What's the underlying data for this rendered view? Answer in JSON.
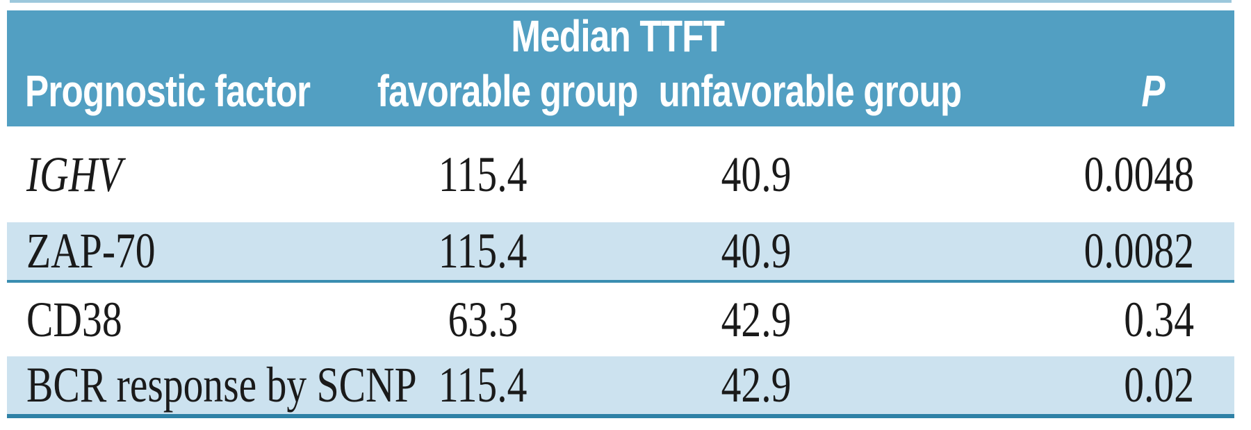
{
  "table": {
    "spanner": "Median TTFT",
    "columns": {
      "factor": "Prognostic factor",
      "favorable": "favorable group",
      "unfavorable": "unfavorable group",
      "p": "P"
    },
    "rows": [
      {
        "factor": "IGHV",
        "favorable": "115.4",
        "unfavorable": "40.9",
        "p": "0.0048"
      },
      {
        "factor": "ZAP-70",
        "favorable": "115.4",
        "unfavorable": "40.9",
        "p": "0.0082"
      },
      {
        "factor": "CD38",
        "favorable": "63.3",
        "unfavorable": "42.9",
        "p": "0.34"
      },
      {
        "factor": "BCR response by SCNP",
        "favorable": "115.4",
        "unfavorable": "42.9",
        "p": "0.02"
      }
    ],
    "colors": {
      "header_bg": "#529fc2",
      "stripe_bg": "#cce2ef",
      "stripe_rule": "#3a8db0",
      "bottom_rule": "#2e81a6",
      "top_accent": "#9cc8dc",
      "header_text": "#ffffff",
      "body_text": "#1a1a1a"
    }
  },
  "chart_data": {
    "type": "table",
    "title": "Median TTFT by prognostic factor",
    "columns": [
      "Prognostic factor",
      "Median TTFT favorable group",
      "Median TTFT unfavorable group",
      "P"
    ],
    "rows": [
      [
        "IGHV",
        115.4,
        40.9,
        0.0048
      ],
      [
        "ZAP-70",
        115.4,
        40.9,
        0.0082
      ],
      [
        "CD38",
        63.3,
        42.9,
        0.34
      ],
      [
        "BCR response by SCNP",
        115.4,
        42.9,
        0.02
      ]
    ]
  }
}
